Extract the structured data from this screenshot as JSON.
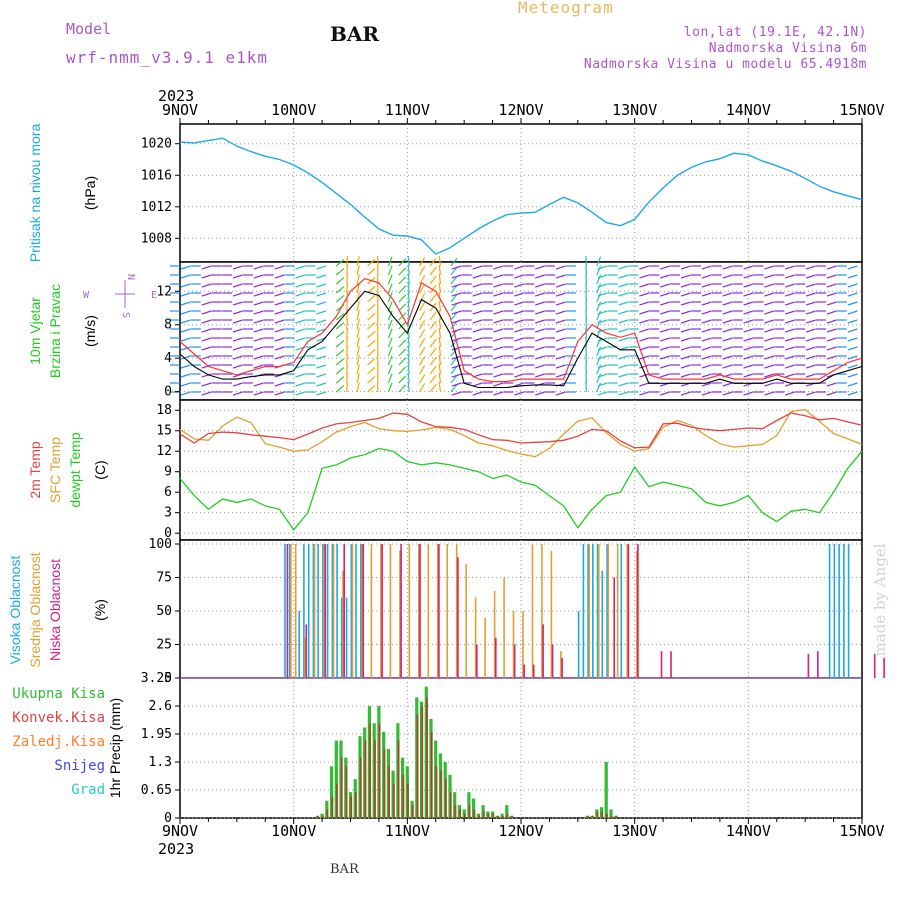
{
  "header": {
    "model_label": "Model",
    "model_name": "wrf-nmm_v3.9.1 e1km",
    "station": "BAR",
    "title": "Meteogram",
    "lonlat": "lon,lat (19.1E, 42.1N)",
    "elevation": "Nadmorska Visina 6m",
    "model_elevation": "Nadmorska Visina u modelu 65.4918m",
    "footer_station": "BAR",
    "credit": "made by Angel"
  },
  "colors": {
    "pressure": "#1ea8e6",
    "wind_label": "#22cc22",
    "wind_speed": "#000000",
    "wind_gust": "#ff3333",
    "t2m": "#e84040",
    "sfc": "#e0a030",
    "dewpt": "#22cc22",
    "high_cloud": "#1ea8e6",
    "mid_cloud": "#e0a030",
    "low_cloud": "#d6207a",
    "total_precip": "#33bb33",
    "conv_precip": "#e84040",
    "frz_precip": "#ff7f27",
    "snow": "#4444ee",
    "graupel": "#22cccc",
    "compass": "#aa66cc"
  },
  "time_axis": {
    "year_top": "2023",
    "year_bottom": "2023",
    "ticks": [
      "9NOV",
      "10NOV",
      "11NOV",
      "12NOV",
      "13NOV",
      "14NOV",
      "15NOV"
    ]
  },
  "compass": {
    "north": "N",
    "south": "S",
    "west": "W",
    "east": "E"
  },
  "chart_data": [
    {
      "type": "line",
      "panel": "pressure",
      "ylabel": "Pritisak na nivou mora",
      "unit": "(hPa)",
      "yticks": [
        "1008",
        "1012",
        "1016",
        "1020"
      ],
      "ylim": [
        1005,
        1022.5
      ],
      "x_hours": [
        0,
        3,
        6,
        9,
        12,
        15,
        18,
        21,
        24,
        27,
        30,
        33,
        36,
        39,
        42,
        45,
        48,
        51,
        54,
        57,
        60,
        63,
        66,
        69,
        72,
        75,
        78,
        81,
        84,
        87,
        90,
        93,
        96,
        99,
        102,
        105,
        108,
        111,
        114,
        117,
        120,
        123,
        126,
        129,
        132,
        135,
        138,
        141,
        144
      ],
      "values": [
        1020.2,
        1020.1,
        1020.4,
        1020.7,
        1019.7,
        1019.0,
        1018.4,
        1018.0,
        1017.3,
        1016.3,
        1015.1,
        1013.7,
        1012.3,
        1010.7,
        1009.2,
        1008.4,
        1008.3,
        1007.8,
        1006.0,
        1006.8,
        1008.0,
        1009.2,
        1010.2,
        1011.0,
        1011.2,
        1011.3,
        1012.3,
        1013.2,
        1012.5,
        1011.3,
        1010.0,
        1009.6,
        1010.4,
        1012.6,
        1014.4,
        1016.0,
        1017.0,
        1017.7,
        1018.1,
        1018.8,
        1018.6,
        1017.8,
        1017.2,
        1016.5,
        1015.6,
        1014.6,
        1013.9,
        1013.4,
        1012.9
      ],
      "series": [
        {
          "name": "Pritisak na nivou mora"
        }
      ]
    },
    {
      "type": "line",
      "panel": "wind",
      "ylabel": "10m Vjetar",
      "ylabel2": "Brzina i Pravac",
      "unit": "(m/s)",
      "yticks": [
        "0",
        "4",
        "8",
        "12"
      ],
      "ylim": [
        -1,
        15.5
      ],
      "x_hours": [
        0,
        3,
        6,
        9,
        12,
        15,
        18,
        21,
        24,
        27,
        30,
        33,
        36,
        39,
        42,
        45,
        48,
        51,
        54,
        57,
        60,
        63,
        66,
        69,
        72,
        75,
        78,
        81,
        84,
        87,
        90,
        93,
        96,
        99,
        102,
        105,
        108,
        111,
        114,
        117,
        120,
        123,
        126,
        129,
        132,
        135,
        138,
        141,
        144
      ],
      "series": [
        {
          "name": "speed",
          "values": [
            4.5,
            3,
            2,
            1.5,
            1.5,
            1.8,
            2,
            2,
            2.5,
            5,
            6,
            8,
            10,
            12,
            11.5,
            9,
            7,
            11,
            10,
            7,
            1,
            0.5,
            0.5,
            0.5,
            0.7,
            0.8,
            0.8,
            0.7,
            4,
            7,
            6,
            5,
            5,
            1,
            1,
            1,
            1,
            1,
            1.5,
            1,
            1,
            1,
            1.5,
            1,
            1,
            1,
            2,
            2.5,
            3
          ]
        },
        {
          "name": "gust",
          "values": [
            6,
            4.5,
            3,
            2.5,
            2,
            2.5,
            3,
            3,
            3.5,
            6,
            7,
            9,
            12,
            13.5,
            13,
            11,
            8,
            13,
            12,
            9,
            2.5,
            1.5,
            1.2,
            1.2,
            1.5,
            1.5,
            1.5,
            1.5,
            6,
            8,
            7,
            6.5,
            7,
            2,
            1.5,
            1.5,
            1.5,
            1.5,
            2,
            1.5,
            1.5,
            1.5,
            2,
            1.5,
            1.5,
            1.5,
            2.5,
            3.5,
            4
          ]
        }
      ]
    },
    {
      "type": "line",
      "panel": "temperature",
      "ylabel": "2m Temp",
      "ylabel2": "SFC Temp",
      "ylabel3": "dewpt Temp",
      "unit": "(C)",
      "yticks": [
        "0",
        "3",
        "6",
        "9",
        "12",
        "15",
        "18"
      ],
      "ylim": [
        -1,
        19.5
      ],
      "x_hours": [
        0,
        3,
        6,
        9,
        12,
        15,
        18,
        21,
        24,
        27,
        30,
        33,
        36,
        39,
        42,
        45,
        48,
        51,
        54,
        57,
        60,
        63,
        66,
        69,
        72,
        75,
        78,
        81,
        84,
        87,
        90,
        93,
        96,
        99,
        102,
        105,
        108,
        111,
        114,
        117,
        120,
        123,
        126,
        129,
        132,
        135,
        138,
        141,
        144
      ],
      "series": [
        {
          "name": "2m Temp",
          "values": [
            14.5,
            13.2,
            14.6,
            14.8,
            14.7,
            14.4,
            14.2,
            14.0,
            13.7,
            14.5,
            15.4,
            16.0,
            16.2,
            16.5,
            16.8,
            17.6,
            17.4,
            16.3,
            15.6,
            15.5,
            15.2,
            14.4,
            13.7,
            13.6,
            13.2,
            13.3,
            13.4,
            13.6,
            14.2,
            15.2,
            15.0,
            13.5,
            12.5,
            12.6,
            16.0,
            16.1,
            15.5,
            15.2,
            15.0,
            15.2,
            15.4,
            15.3,
            16.5,
            17.6,
            17.2,
            16.6,
            16.8,
            16.3,
            15.8
          ]
        },
        {
          "name": "SFC Temp",
          "values": [
            15.2,
            13.8,
            13.6,
            15.7,
            17.0,
            16.2,
            13.1,
            12.6,
            12.0,
            12.2,
            13.4,
            14.8,
            15.6,
            16.2,
            15.3,
            15.0,
            14.9,
            15.1,
            15.5,
            15.2,
            14.3,
            13.2,
            12.8,
            12.1,
            11.6,
            11.2,
            12.4,
            14.5,
            16.4,
            16.9,
            14.7,
            13.0,
            12.0,
            12.4,
            15.5,
            16.5,
            15.8,
            14.3,
            13.1,
            12.6,
            12.8,
            13.0,
            14.3,
            17.8,
            18.1,
            16.4,
            14.6,
            13.8,
            13.0
          ]
        },
        {
          "name": "dewpt Temp",
          "values": [
            8.0,
            5.5,
            3.5,
            5.0,
            4.5,
            5.0,
            4.0,
            3.5,
            0.5,
            3.0,
            9.5,
            10.0,
            11.0,
            11.5,
            12.4,
            12.0,
            10.5,
            10.0,
            10.3,
            10.0,
            9.5,
            9.0,
            8.0,
            8.5,
            7.5,
            7.0,
            5.5,
            4.0,
            0.8,
            3.5,
            5.5,
            6.0,
            9.7,
            6.8,
            7.5,
            7.0,
            6.5,
            4.5,
            4.0,
            4.5,
            5.5,
            3.0,
            1.7,
            3.2,
            3.5,
            3.0,
            6.0,
            9.5,
            12.0
          ]
        }
      ]
    },
    {
      "type": "bar",
      "panel": "cloud",
      "ylabel": "Visoka Oblacnost",
      "ylabel2": "Srednja Oblacnost",
      "ylabel3": "Niska Oblacnost",
      "unit": "(%)",
      "yticks": [
        "0",
        "25",
        "50",
        "75",
        "100"
      ],
      "ylim": [
        0,
        103
      ],
      "series": [
        {
          "name": "Visoka Oblacnost",
          "x_hours": [
            22,
            23,
            25,
            26,
            27,
            28,
            29,
            30,
            31,
            32,
            33,
            34,
            35,
            36,
            37,
            38,
            84,
            85,
            86,
            87,
            88,
            89,
            90,
            93,
            137,
            138,
            139,
            140,
            141
          ],
          "values": [
            100,
            100,
            50,
            100,
            100,
            100,
            100,
            100,
            100,
            100,
            100,
            60,
            60,
            100,
            100,
            100,
            50,
            100,
            100,
            100,
            100,
            80,
            100,
            100,
            100,
            100,
            100,
            100,
            100
          ]
        },
        {
          "name": "Srednja Oblacnost",
          "x_hours": [
            23,
            24,
            26,
            28,
            30,
            32,
            34,
            36,
            38,
            40,
            42,
            44,
            46,
            48,
            50,
            52,
            54,
            56,
            58,
            60,
            62,
            64,
            66,
            68,
            70,
            72,
            74,
            76,
            78,
            80,
            86,
            88,
            90,
            92,
            94,
            96
          ],
          "values": [
            100,
            100,
            30,
            100,
            100,
            100,
            80,
            100,
            100,
            100,
            100,
            100,
            95,
            100,
            100,
            100,
            100,
            100,
            100,
            85,
            60,
            45,
            65,
            75,
            50,
            50,
            100,
            100,
            95,
            20,
            100,
            100,
            100,
            100,
            100,
            95
          ]
        },
        {
          "name": "Niska Oblacnost",
          "x_hours": [
            22,
            26,
            30,
            34,
            38,
            42,
            46,
            50,
            54,
            58,
            62,
            66,
            70,
            72,
            74,
            76,
            78,
            80,
            91,
            94,
            96,
            101,
            103,
            132,
            134,
            146,
            148
          ],
          "values": [
            100,
            40,
            100,
            100,
            100,
            100,
            100,
            100,
            100,
            90,
            25,
            30,
            25,
            10,
            10,
            40,
            25,
            15,
            75,
            100,
            100,
            20,
            20,
            18,
            20,
            18,
            15
          ]
        }
      ]
    },
    {
      "type": "bar",
      "panel": "precip",
      "ylabel": "1hr Precip (mm)",
      "yticks": [
        "0",
        "0.65",
        "1.3",
        "1.95",
        "2.6",
        "3.25"
      ],
      "ylim": [
        0,
        3.25
      ],
      "legend": [
        "Ukupna Kisa",
        "Konvek.Kisa",
        "Zaledj.Kisa",
        "Snijeg",
        "Grad"
      ],
      "x_hours": [
        29,
        30,
        31,
        32,
        33,
        34,
        35,
        36,
        37,
        38,
        39,
        40,
        41,
        42,
        43,
        44,
        45,
        46,
        47,
        48,
        49,
        50,
        51,
        52,
        53,
        54,
        55,
        56,
        57,
        58,
        59,
        60,
        61,
        62,
        63,
        64,
        65,
        66,
        67,
        68,
        69,
        70,
        86,
        87,
        88,
        89,
        90,
        91,
        92
      ],
      "series": [
        {
          "name": "Ukupna Kisa",
          "values": [
            0.05,
            0.1,
            0.4,
            1.2,
            1.8,
            1.8,
            1.4,
            0.6,
            0.9,
            1.9,
            2.1,
            2.6,
            2.2,
            2.6,
            2.0,
            1.6,
            1.1,
            2.2,
            1.4,
            1.2,
            0.4,
            2.8,
            2.7,
            3.05,
            2.3,
            1.8,
            1.5,
            1.3,
            1.0,
            0.6,
            0.3,
            0.2,
            0.6,
            0.45,
            0.1,
            0.3,
            0.15,
            0.15,
            0.05,
            0.1,
            0.3,
            0.05,
            0.05,
            0.05,
            0.2,
            0.25,
            1.3,
            0.2,
            0.05
          ]
        },
        {
          "name": "Konvek.Kisa",
          "values": [
            0.05,
            0.05,
            0.2,
            0.5,
            0.8,
            1.4,
            1.2,
            0.5,
            0.6,
            1.4,
            1.8,
            2.2,
            1.8,
            2.2,
            1.6,
            1.2,
            0.8,
            1.8,
            1.0,
            0.8,
            0.3,
            2.4,
            2.6,
            2.8,
            2.0,
            1.2,
            1.1,
            0.9,
            0.6,
            0.3,
            0.2,
            0.1,
            0.3,
            0.2,
            0.05,
            0.15,
            0.1,
            0.1,
            0.05,
            0.05,
            0.1,
            0.05,
            0.05,
            0.05,
            0.15,
            0.15,
            0.1,
            0.05,
            0.05
          ]
        }
      ]
    }
  ]
}
